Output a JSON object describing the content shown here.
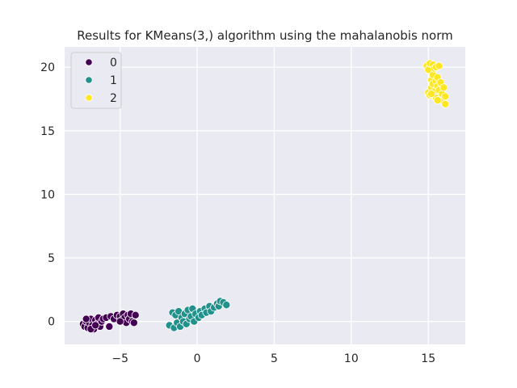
{
  "chart_data": {
    "type": "scatter",
    "title": "Results for KMeans(3,) algorithm using the mahalanobis norm",
    "xlabel": "",
    "ylabel": "",
    "xlim": [
      -8.6,
      17.4
    ],
    "ylim": [
      -1.8,
      21.6
    ],
    "xticks": [
      -5,
      0,
      5,
      10,
      15
    ],
    "xtick_labels": [
      "−5",
      "0",
      "5",
      "10",
      "15"
    ],
    "yticks": [
      0,
      5,
      10,
      15,
      20
    ],
    "ytick_labels": [
      "0",
      "5",
      "10",
      "15",
      "20"
    ],
    "grid": true,
    "legend_position": "top-left",
    "series": [
      {
        "name": "0",
        "color": "#440154",
        "points": [
          [
            -7.4,
            -0.2
          ],
          [
            -7.3,
            -0.4
          ],
          [
            -7.2,
            0.0
          ],
          [
            -7.1,
            -0.5
          ],
          [
            -7.0,
            -0.1
          ],
          [
            -6.9,
            0.2
          ],
          [
            -6.8,
            -0.3
          ],
          [
            -6.7,
            -0.6
          ],
          [
            -6.6,
            0.1
          ],
          [
            -6.5,
            -0.2
          ],
          [
            -6.4,
            0.3
          ],
          [
            -6.3,
            -0.4
          ],
          [
            -6.2,
            0.0
          ],
          [
            -6.1,
            0.2
          ],
          [
            -5.9,
            0.3
          ],
          [
            -5.7,
            -0.4
          ],
          [
            -5.6,
            0.4
          ],
          [
            -5.4,
            0.2
          ],
          [
            -5.2,
            0.5
          ],
          [
            -5.0,
            0.4
          ],
          [
            -4.9,
            0.1
          ],
          [
            -4.8,
            0.6
          ],
          [
            -4.7,
            0.3
          ],
          [
            -4.6,
            -0.1
          ],
          [
            -4.5,
            0.5
          ],
          [
            -4.4,
            0.2
          ],
          [
            -4.3,
            0.6
          ],
          [
            -4.2,
            0.0
          ],
          [
            -4.1,
            -0.1
          ],
          [
            -4.0,
            0.5
          ],
          [
            -7.2,
            0.2
          ],
          [
            -6.9,
            -0.6
          ],
          [
            -6.6,
            -0.3
          ],
          [
            -5.0,
            0.0
          ]
        ]
      },
      {
        "name": "1",
        "color": "#21918c",
        "points": [
          [
            -1.8,
            -0.3
          ],
          [
            -1.6,
            0.7
          ],
          [
            -1.5,
            -0.5
          ],
          [
            -1.4,
            0.5
          ],
          [
            -1.3,
            -0.1
          ],
          [
            -1.2,
            0.8
          ],
          [
            -1.1,
            -0.4
          ],
          [
            -1.0,
            0.3
          ],
          [
            -0.9,
            0.0
          ],
          [
            -0.8,
            0.6
          ],
          [
            -0.7,
            -0.2
          ],
          [
            -0.6,
            0.9
          ],
          [
            -0.5,
            0.2
          ],
          [
            -0.4,
            0.4
          ],
          [
            -0.3,
            1.0
          ],
          [
            -0.2,
            0.0
          ],
          [
            -0.1,
            0.6
          ],
          [
            0.1,
            0.3
          ],
          [
            0.2,
            0.8
          ],
          [
            0.3,
            0.5
          ],
          [
            0.5,
            1.0
          ],
          [
            0.6,
            0.7
          ],
          [
            0.8,
            1.2
          ],
          [
            0.9,
            0.8
          ],
          [
            1.1,
            1.1
          ],
          [
            1.3,
            1.4
          ],
          [
            1.4,
            1.2
          ],
          [
            1.5,
            1.6
          ],
          [
            1.7,
            1.5
          ],
          [
            1.9,
            1.3
          ]
        ]
      },
      {
        "name": "2",
        "color": "#fde725",
        "points": [
          [
            14.9,
            20.1
          ],
          [
            15.0,
            19.8
          ],
          [
            15.0,
            18.0
          ],
          [
            15.1,
            20.3
          ],
          [
            15.1,
            17.8
          ],
          [
            15.2,
            19.0
          ],
          [
            15.2,
            18.4
          ],
          [
            15.3,
            20.2
          ],
          [
            15.3,
            19.4
          ],
          [
            15.3,
            18.7
          ],
          [
            15.4,
            19.9
          ],
          [
            15.4,
            18.1
          ],
          [
            15.5,
            20.0
          ],
          [
            15.5,
            18.9
          ],
          [
            15.5,
            17.6
          ],
          [
            15.6,
            19.2
          ],
          [
            15.6,
            18.5
          ],
          [
            15.7,
            20.1
          ],
          [
            15.7,
            18.2
          ],
          [
            15.8,
            17.5
          ],
          [
            15.8,
            18.8
          ],
          [
            15.9,
            17.9
          ],
          [
            16.0,
            18.4
          ],
          [
            16.0,
            17.3
          ],
          [
            16.1,
            17.7
          ],
          [
            16.1,
            17.1
          ],
          [
            15.2,
            17.9
          ],
          [
            15.6,
            17.4
          ]
        ]
      }
    ]
  }
}
